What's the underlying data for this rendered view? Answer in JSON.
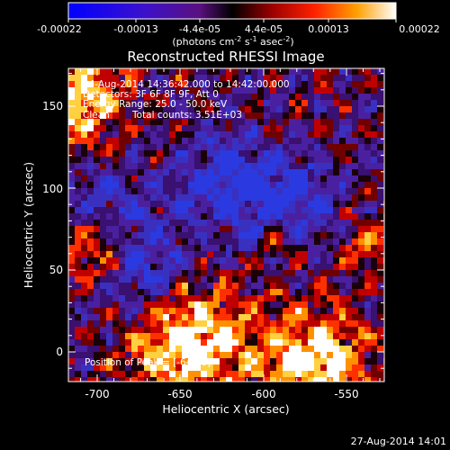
{
  "colorbar": {
    "ticks": [
      "-0.00022",
      "-0.00013",
      "-4.4e-05",
      "4.4e-05",
      "0.00013",
      "0.00022"
    ],
    "units_main": "(photons cm",
    "units_sup1": "-2",
    "units_mid": " s",
    "units_sup2": "-1",
    "units_mid2": " asec",
    "units_sup3": "-2",
    "units_end": ")",
    "colors": [
      "#0000ff",
      "#5a00b5",
      "#7a30a8",
      "#000000",
      "#b00000",
      "#ff3000",
      "#ff9a00",
      "#ffffff"
    ]
  },
  "title": "Reconstructed RHESSI Image",
  "info": {
    "line1": "24-Aug-2014 14:36:42.000 to 14:42:00.000",
    "line2": "Detectors: 3F 6F 8F 9F, Att 0",
    "line3": "Energy Range: 25.0 - 50.0 keV",
    "line4_a": "Clean",
    "line4_b": "Total counts: 3.51E+03",
    "peak": "Position of Peak = [-644,0]"
  },
  "axes": {
    "xlabel": "Heliocentric X (arcsec)",
    "ylabel": "Heliocentric Y (arcsec)",
    "xticks": [
      "-700",
      "-650",
      "-600",
      "-550"
    ],
    "yticks": [
      "150",
      "100",
      "50",
      "0"
    ]
  },
  "timestamp": "27-Aug-2014 14:01"
}
